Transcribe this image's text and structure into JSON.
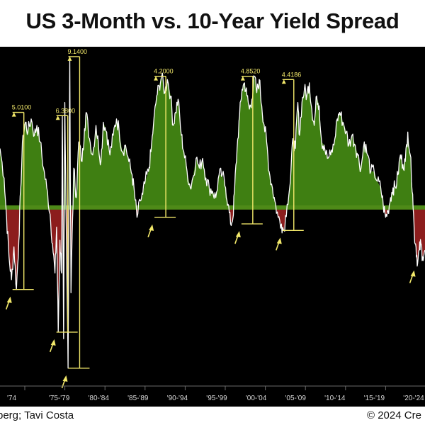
{
  "title": "US 3-Month vs. 10-Year Yield Spread",
  "footer": {
    "source": "berg; Tavi Costa",
    "credit": "© 2024 Cre"
  },
  "colors": {
    "positive_fill": "#3f7f12",
    "negative_fill": "#8c1d1d",
    "line": "#ffffff",
    "annotation": "#f2e86a",
    "zero_band": "#4e8a18"
  },
  "chart_data": {
    "type": "area",
    "title": "US 3-Month vs. 10-Year Yield Spread",
    "xlabel": "",
    "ylabel": "",
    "xlim": [
      1972.5,
      2024.3
    ],
    "ylim": [
      -5.4,
      4.9
    ],
    "grid": false,
    "legend": "none",
    "x_tick_labels": [
      "'74",
      "'75-'79",
      "'80-'84",
      "'85-'89",
      "'90-'94",
      "'95-'99",
      "'00-'04",
      "'05-'09",
      "'10-'14",
      "'15-'19",
      "'20-'24"
    ],
    "series": [
      {
        "values": [
          [
            1972.5,
            1.8
          ],
          [
            1973.0,
            0.9
          ],
          [
            1973.3,
            -0.3
          ],
          [
            1973.6,
            -1.5
          ],
          [
            1973.9,
            -2.2
          ],
          [
            1974.2,
            -1.2
          ],
          [
            1974.5,
            -2.5
          ],
          [
            1974.8,
            -1.0
          ],
          [
            1975.0,
            0.5
          ],
          [
            1975.3,
            2.2
          ],
          [
            1975.6,
            2.6
          ],
          [
            1975.9,
            2.3
          ],
          [
            1976.3,
            2.7
          ],
          [
            1976.7,
            2.2
          ],
          [
            1977.0,
            2.5
          ],
          [
            1977.4,
            2.0
          ],
          [
            1977.8,
            1.2
          ],
          [
            1978.2,
            0.6
          ],
          [
            1978.6,
            -0.2
          ],
          [
            1978.9,
            -1.1
          ],
          [
            1979.2,
            -2.0
          ],
          [
            1979.4,
            -0.6
          ],
          [
            1979.6,
            -3.8
          ],
          [
            1979.8,
            -1.0
          ],
          [
            1980.0,
            -2.0
          ],
          [
            1980.1,
            2.8
          ],
          [
            1980.25,
            -4.0
          ],
          [
            1980.4,
            3.2
          ],
          [
            1980.6,
            -1.0
          ],
          [
            1980.8,
            -4.9
          ],
          [
            1980.9,
            -0.4
          ],
          [
            1981.0,
            4.6
          ],
          [
            1981.15,
            -2.6
          ],
          [
            1981.3,
            -0.8
          ],
          [
            1981.5,
            1.2
          ],
          [
            1981.8,
            0.3
          ],
          [
            1982.1,
            2.0
          ],
          [
            1982.5,
            1.4
          ],
          [
            1982.8,
            2.4
          ],
          [
            1983.0,
            2.9
          ],
          [
            1983.4,
            2.1
          ],
          [
            1983.8,
            1.6
          ],
          [
            1984.2,
            2.5
          ],
          [
            1984.5,
            1.9
          ],
          [
            1984.8,
            1.4
          ],
          [
            1985.1,
            2.6
          ],
          [
            1985.5,
            2.3
          ],
          [
            1985.9,
            1.6
          ],
          [
            1986.3,
            2.2
          ],
          [
            1986.7,
            2.7
          ],
          [
            1987.0,
            2.4
          ],
          [
            1987.4,
            1.7
          ],
          [
            1987.8,
            1.9
          ],
          [
            1988.2,
            1.4
          ],
          [
            1988.6,
            1.0
          ],
          [
            1988.9,
            0.4
          ],
          [
            1989.2,
            -0.3
          ],
          [
            1989.6,
            0.2
          ],
          [
            1989.9,
            0.4
          ],
          [
            1990.2,
            0.8
          ],
          [
            1990.6,
            1.1
          ],
          [
            1990.9,
            1.7
          ],
          [
            1991.2,
            2.5
          ],
          [
            1991.6,
            3.4
          ],
          [
            1991.9,
            3.7
          ],
          [
            1992.2,
            4.0
          ],
          [
            1992.6,
            3.5
          ],
          [
            1992.9,
            3.9
          ],
          [
            1993.3,
            3.4
          ],
          [
            1993.6,
            2.5
          ],
          [
            1993.9,
            2.9
          ],
          [
            1994.2,
            3.3
          ],
          [
            1994.6,
            2.2
          ],
          [
            1994.9,
            1.7
          ],
          [
            1995.3,
            1.1
          ],
          [
            1995.7,
            0.6
          ],
          [
            1996.0,
            0.9
          ],
          [
            1996.4,
            1.5
          ],
          [
            1996.8,
            1.2
          ],
          [
            1997.2,
            1.5
          ],
          [
            1997.6,
            0.9
          ],
          [
            1998.0,
            0.6
          ],
          [
            1998.4,
            0.5
          ],
          [
            1998.8,
            0.3
          ],
          [
            1999.2,
            1.0
          ],
          [
            1999.6,
            1.0
          ],
          [
            2000.0,
            0.6
          ],
          [
            2000.3,
            0.1
          ],
          [
            2000.6,
            -0.5
          ],
          [
            2000.9,
            -0.3
          ],
          [
            2001.1,
            0.6
          ],
          [
            2001.4,
            1.8
          ],
          [
            2001.7,
            2.8
          ],
          [
            2002.0,
            3.6
          ],
          [
            2002.3,
            3.8
          ],
          [
            2002.6,
            3.4
          ],
          [
            2002.9,
            3.0
          ],
          [
            2003.2,
            3.3
          ],
          [
            2003.5,
            4.0
          ],
          [
            2003.8,
            3.5
          ],
          [
            2004.1,
            3.9
          ],
          [
            2004.4,
            3.1
          ],
          [
            2004.7,
            2.5
          ],
          [
            2005.0,
            2.0
          ],
          [
            2005.3,
            1.1
          ],
          [
            2005.7,
            0.6
          ],
          [
            2006.0,
            0.2
          ],
          [
            2006.4,
            -0.3
          ],
          [
            2006.8,
            -0.5
          ],
          [
            2007.1,
            -0.7
          ],
          [
            2007.5,
            0.1
          ],
          [
            2007.9,
            0.8
          ],
          [
            2008.2,
            2.1
          ],
          [
            2008.5,
            1.8
          ],
          [
            2008.8,
            3.2
          ],
          [
            2009.0,
            2.2
          ],
          [
            2009.3,
            3.2
          ],
          [
            2009.6,
            3.6
          ],
          [
            2009.9,
            3.4
          ],
          [
            2010.2,
            3.8
          ],
          [
            2010.5,
            3.0
          ],
          [
            2010.8,
            2.5
          ],
          [
            2011.1,
            3.4
          ],
          [
            2011.4,
            3.1
          ],
          [
            2011.7,
            2.0
          ],
          [
            2012.0,
            1.9
          ],
          [
            2012.4,
            1.5
          ],
          [
            2012.8,
            1.6
          ],
          [
            2013.2,
            1.9
          ],
          [
            2013.6,
            2.7
          ],
          [
            2013.9,
            2.9
          ],
          [
            2014.3,
            2.6
          ],
          [
            2014.7,
            2.3
          ],
          [
            2015.0,
            1.9
          ],
          [
            2015.4,
            2.2
          ],
          [
            2015.8,
            1.9
          ],
          [
            2016.1,
            1.6
          ],
          [
            2016.5,
            1.2
          ],
          [
            2016.9,
            2.0
          ],
          [
            2017.3,
            1.6
          ],
          [
            2017.7,
            1.1
          ],
          [
            2018.1,
            1.1
          ],
          [
            2018.5,
            0.8
          ],
          [
            2018.9,
            0.6
          ],
          [
            2019.2,
            0.1
          ],
          [
            2019.5,
            -0.3
          ],
          [
            2019.8,
            -0.1
          ],
          [
            2020.1,
            0.3
          ],
          [
            2020.4,
            0.6
          ],
          [
            2020.7,
            0.6
          ],
          [
            2021.0,
            1.0
          ],
          [
            2021.3,
            1.6
          ],
          [
            2021.6,
            1.3
          ],
          [
            2021.9,
            1.4
          ],
          [
            2022.2,
            2.3
          ],
          [
            2022.5,
            1.6
          ],
          [
            2022.8,
            0.4
          ],
          [
            2023.0,
            -0.8
          ],
          [
            2023.2,
            -1.2
          ],
          [
            2023.4,
            -1.7
          ],
          [
            2023.6,
            -1.3
          ],
          [
            2023.8,
            -1.1
          ],
          [
            2024.0,
            -1.5
          ],
          [
            2024.3,
            -1.3
          ]
        ]
      }
    ],
    "peak_annotations": [
      {
        "x": 1974.2,
        "value": "5.0100",
        "high": 2.9,
        "low": -2.5,
        "arrow_at_low": true
      },
      {
        "x": 1979.55,
        "value": "6.3800",
        "high": 2.8,
        "low": -3.8,
        "arrow_at_low": true
      },
      {
        "x": 1981.0,
        "value": "9.1400",
        "high": 4.6,
        "low": -4.9,
        "arrow_at_low": true
      },
      {
        "x": 1991.5,
        "value": "4.2000",
        "high": 4.0,
        "low": -0.3,
        "arrow_at_low": true
      },
      {
        "x": 2002.1,
        "value": "4.8520",
        "high": 4.0,
        "low": -0.5,
        "arrow_at_low": true
      },
      {
        "x": 2007.1,
        "value": "4.4186",
        "high": 3.9,
        "low": -0.7,
        "arrow_at_low": true
      },
      {
        "x": 2023.4,
        "value": "",
        "high": null,
        "low": -1.7,
        "arrow_at_low": true
      }
    ]
  }
}
